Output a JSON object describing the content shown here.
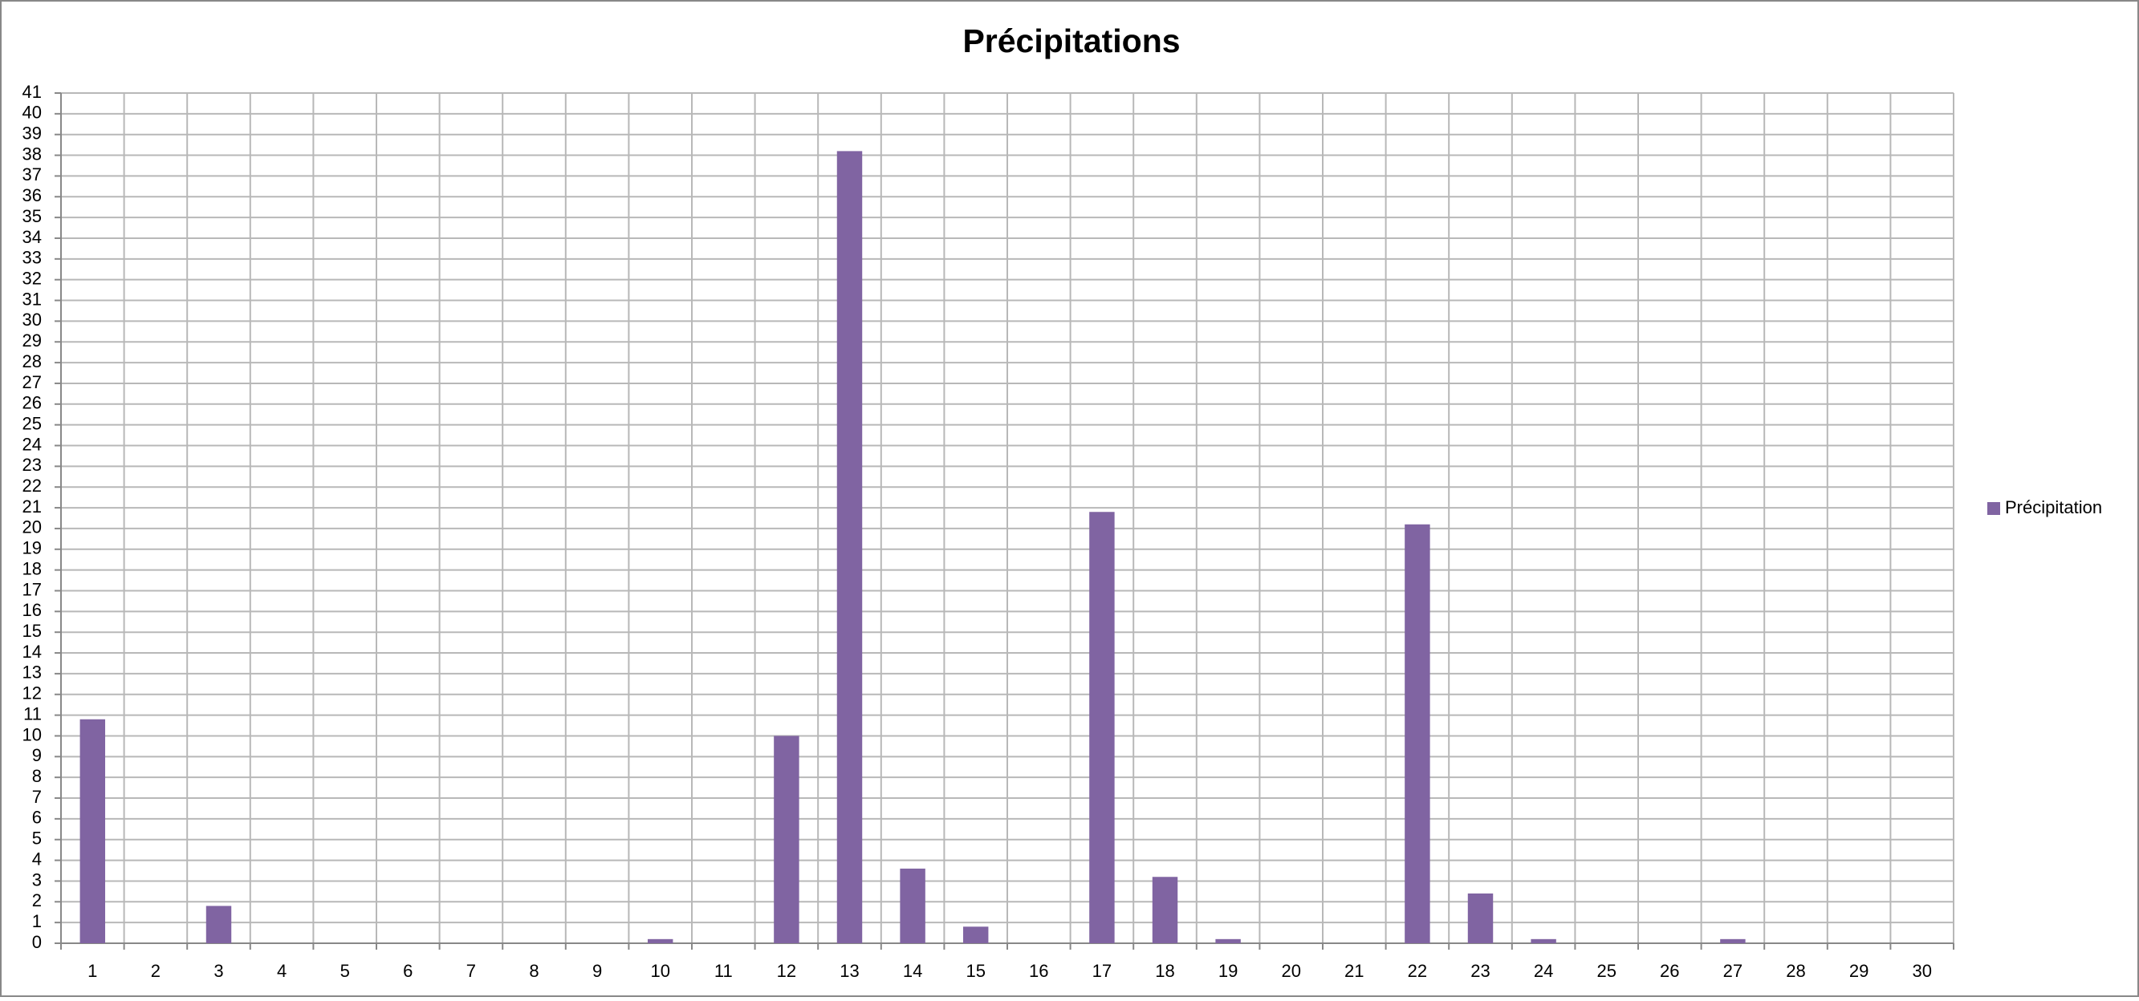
{
  "chart_data": {
    "type": "bar",
    "title": "Précipitations",
    "categories": [
      "1",
      "2",
      "3",
      "4",
      "5",
      "6",
      "7",
      "8",
      "9",
      "10",
      "11",
      "12",
      "13",
      "14",
      "15",
      "16",
      "17",
      "18",
      "19",
      "20",
      "21",
      "22",
      "23",
      "24",
      "25",
      "26",
      "27",
      "28",
      "29",
      "30"
    ],
    "series": [
      {
        "name": "Précipitation",
        "color": "#8064a2",
        "values": [
          10.8,
          0,
          1.8,
          0,
          0,
          0,
          0,
          0,
          0,
          0.2,
          0,
          10,
          38.2,
          3.6,
          0.8,
          0,
          20.8,
          3.2,
          0.2,
          0,
          0,
          20.2,
          2.4,
          0.2,
          0,
          0,
          0.2,
          0,
          0,
          0
        ]
      }
    ],
    "ylim": [
      0,
      41
    ],
    "yticks": [
      0,
      1,
      2,
      3,
      4,
      5,
      6,
      7,
      8,
      9,
      10,
      11,
      12,
      13,
      14,
      15,
      16,
      17,
      18,
      19,
      20,
      21,
      22,
      23,
      24,
      25,
      26,
      27,
      28,
      29,
      30,
      31,
      32,
      33,
      34,
      35,
      36,
      37,
      38,
      39,
      40,
      41
    ],
    "grid": true,
    "legend": "right"
  }
}
